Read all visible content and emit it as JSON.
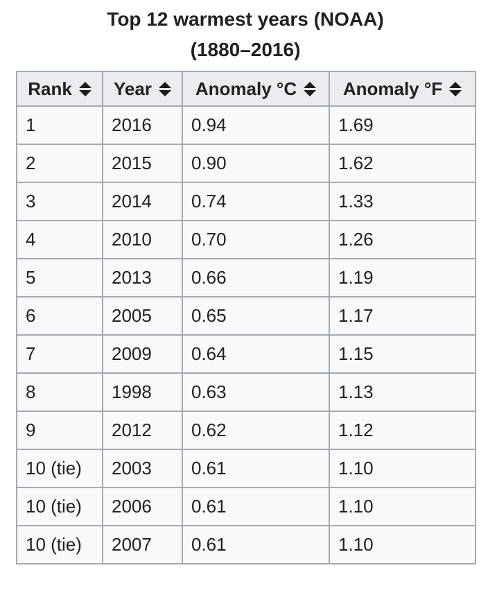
{
  "caption": {
    "title": "Top 12 warmest years (NOAA)",
    "subtitle": "(1880–2016)"
  },
  "colors": {
    "border": "#a2a9b1",
    "header_bg": "#eaecf0",
    "cell_bg": "#f8f9fa",
    "text": "#202122",
    "sort_icon": "#1b1b1b"
  },
  "icons": {
    "sort": "sort-both-icon (stacked up and down triangles)"
  },
  "chart_data": {
    "type": "table",
    "title": "Top 12 warmest years (NOAA)",
    "subtitle": "(1880–2016)",
    "columns": [
      "Rank",
      "Year",
      "Anomaly °C",
      "Anomaly °F"
    ],
    "rows": [
      [
        "1",
        "2016",
        "0.94",
        "1.69"
      ],
      [
        "2",
        "2015",
        "0.90",
        "1.62"
      ],
      [
        "3",
        "2014",
        "0.74",
        "1.33"
      ],
      [
        "4",
        "2010",
        "0.70",
        "1.26"
      ],
      [
        "5",
        "2013",
        "0.66",
        "1.19"
      ],
      [
        "6",
        "2005",
        "0.65",
        "1.17"
      ],
      [
        "7",
        "2009",
        "0.64",
        "1.15"
      ],
      [
        "8",
        "1998",
        "0.63",
        "1.13"
      ],
      [
        "9",
        "2012",
        "0.62",
        "1.12"
      ],
      [
        "10 (tie)",
        "2003",
        "0.61",
        "1.10"
      ],
      [
        "10 (tie)",
        "2006",
        "0.61",
        "1.10"
      ],
      [
        "10 (tie)",
        "2007",
        "0.61",
        "1.10"
      ]
    ]
  }
}
